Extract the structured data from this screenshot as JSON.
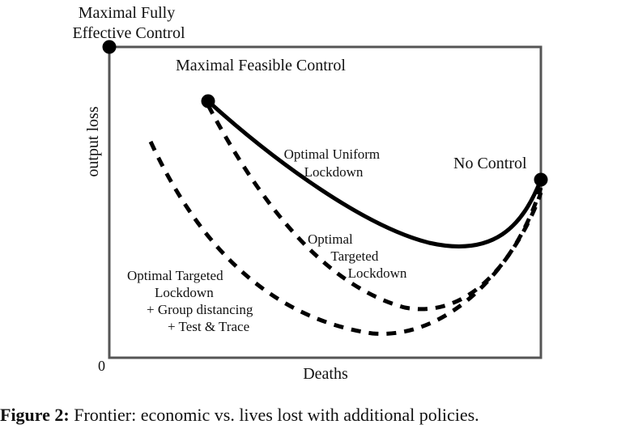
{
  "diagram": {
    "ylabel": "output loss",
    "xlabel": "Deaths",
    "origin_label": "0",
    "points": {
      "max_fully_effective": [
        "Maximal Fully",
        "Effective Control"
      ],
      "max_feasible": "Maximal Feasible Control",
      "no_control": "No Control"
    },
    "curves": {
      "uniform": [
        "Optimal Uniform",
        "Lockdown"
      ],
      "targeted": [
        "Optimal",
        "Targeted",
        "Lockdown"
      ],
      "targeted_group": [
        "Optimal Targeted",
        "Lockdown",
        "+ Group distancing",
        "+ Test & Trace"
      ]
    }
  },
  "caption": {
    "label": "Figure 2:",
    "text": " Frontier: economic vs. lives lost with additional policies."
  }
}
